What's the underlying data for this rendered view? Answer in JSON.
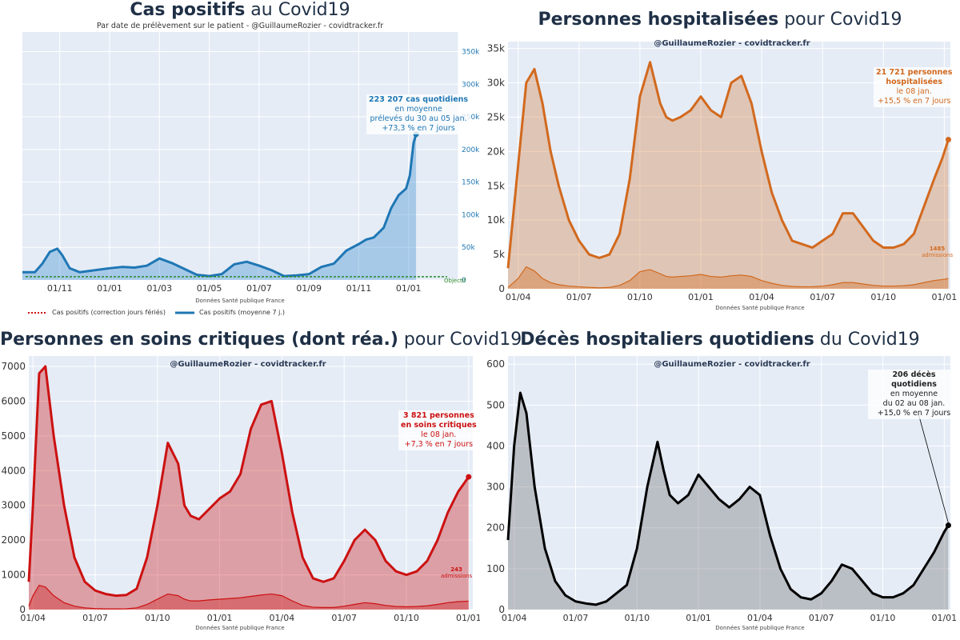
{
  "panels": {
    "cases": {
      "title_bold": "Cas positifs",
      "title_rest": " au Covid19",
      "subtitle": "Par date de prélèvement sur le patient - @GuillaumeRozier - covidtracker.fr",
      "source": "Données Santé publique France",
      "annotation": {
        "line1": "223 207 cas quotidiens",
        "line2": "en moyenne",
        "line3": "prélevés du 30 au 05 jan.",
        "line4": "+73,3 % en 7 jours"
      },
      "objective_label": "Objectif",
      "legend": {
        "dashed": "Cas positifs (correction jours fériés)",
        "solid": "Cas positifs (moyenne 7 j.)"
      }
    },
    "hosp": {
      "title_bold": "Personnes hospitalisées",
      "title_rest": " pour Covid19",
      "credit": "@GuillaumeRozier - covidtracker.fr",
      "source": "Données Santé publique France",
      "annotation": {
        "line1": "21 721 personnes",
        "line2": "hospitalisées",
        "line3": "le 08 jan.",
        "line4": "+15,5 % en 7 jours"
      },
      "admissions": {
        "value": "1485",
        "label": "admissions"
      }
    },
    "icu": {
      "title_bold": "Personnes en soins critiques (dont réa.)",
      "title_rest": " pour Covid19",
      "credit": "@GuillaumeRozier - covidtracker.fr",
      "source": "Données Santé publique France",
      "annotation": {
        "line1": "3 821 personnes",
        "line2": "en soins critiques",
        "line3": "le 08 jan.",
        "line4": "+7,3 % en 7 jours"
      },
      "admissions": {
        "value": "243",
        "label": "admissions"
      }
    },
    "deaths": {
      "title_bold": "Décès hospitaliers quotidiens",
      "title_rest": " du Covid19",
      "credit": "@GuillaumeRozier - covidtracker.fr",
      "source": "Données Santé publique France",
      "annotation": {
        "line1": "206 décès quotidiens",
        "line2": "en moyenne",
        "line3": "du 02 au 08 jan.",
        "line4": "+15,0 % en 7 jours"
      }
    }
  },
  "chart_data": [
    {
      "id": "cases",
      "type": "area",
      "title": "Cas positifs au Covid19",
      "ylim": [
        0,
        380000
      ],
      "yticks": [
        0,
        50000,
        100000,
        150000,
        200000,
        250000,
        300000,
        350000
      ],
      "ytick_labels": [
        "0",
        "50k",
        "100k",
        "150k",
        "200k",
        "250k",
        "300k",
        "350k"
      ],
      "xticks": [
        1.0,
        3.0,
        5.0,
        7.0,
        9.0,
        11.0,
        13.0,
        15.0,
        17.0
      ],
      "xtick_labels": [
        "01/11",
        "01/01",
        "01/03",
        "01/05",
        "01/07",
        "01/09",
        "01/11",
        "01/01",
        ""
      ],
      "xlim": [
        -0.5,
        17.0
      ],
      "color": "#1f77b4",
      "objective": 5000,
      "x": [
        -0.5,
        0.0,
        0.3,
        0.6,
        0.9,
        1.1,
        1.4,
        1.8,
        2.2,
        2.6,
        3.0,
        3.5,
        4.0,
        4.5,
        5.0,
        5.5,
        6.0,
        6.5,
        7.0,
        7.5,
        8.0,
        8.5,
        9.0,
        9.5,
        10.0,
        10.5,
        11.0,
        11.5,
        12.0,
        12.5,
        13.0,
        13.3,
        13.6,
        14.0,
        14.3,
        14.6,
        14.9,
        15.05,
        15.2,
        15.3
      ],
      "values": [
        12000,
        12000,
        25000,
        43000,
        48000,
        38000,
        18000,
        12000,
        14000,
        16000,
        18000,
        20000,
        19000,
        22000,
        33000,
        26000,
        17000,
        8000,
        6000,
        9000,
        24000,
        28000,
        22000,
        15000,
        6000,
        7000,
        9000,
        20000,
        25000,
        45000,
        55000,
        62000,
        65000,
        80000,
        110000,
        130000,
        140000,
        160000,
        210000,
        223207
      ]
    },
    {
      "id": "hosp",
      "type": "area",
      "title": "Personnes hospitalisées pour Covid19",
      "ylim": [
        0,
        36000
      ],
      "yticks": [
        0,
        5000,
        10000,
        15000,
        20000,
        25000,
        30000,
        35000
      ],
      "ytick_labels": [
        "0",
        "5k",
        "10k",
        "15k",
        "20k",
        "25k",
        "30k",
        "35k"
      ],
      "xticks": [
        0.0,
        3.0,
        6.0,
        9.0,
        12.0,
        15.0,
        18.0,
        21.0
      ],
      "xtick_labels": [
        "01/04",
        "01/07",
        "01/10",
        "01/01",
        "01/04",
        "01/07",
        "01/10",
        "01/01"
      ],
      "xlim": [
        -0.5,
        21.3
      ],
      "color": "#d2691e",
      "x": [
        -0.5,
        0.0,
        0.4,
        0.8,
        1.2,
        1.6,
        2.0,
        2.5,
        3.0,
        3.5,
        4.0,
        4.5,
        5.0,
        5.5,
        6.0,
        6.5,
        7.0,
        7.3,
        7.6,
        8.0,
        8.5,
        9.0,
        9.5,
        10.0,
        10.5,
        11.0,
        11.5,
        12.0,
        12.5,
        13.0,
        13.5,
        14.0,
        14.5,
        15.0,
        15.5,
        16.0,
        16.5,
        17.0,
        17.5,
        18.0,
        18.5,
        19.0,
        19.5,
        20.0,
        20.5,
        20.9,
        21.2
      ],
      "values": [
        3000,
        18000,
        30000,
        32000,
        27000,
        20000,
        15000,
        10000,
        7000,
        5000,
        4500,
        5000,
        8000,
        16000,
        28000,
        33000,
        27000,
        25000,
        24500,
        25000,
        26000,
        28000,
        26000,
        25000,
        30000,
        31000,
        27000,
        20000,
        14000,
        10000,
        7000,
        6500,
        6000,
        7000,
        8000,
        11000,
        11000,
        9000,
        7000,
        6000,
        6000,
        6500,
        8000,
        12000,
        16000,
        19000,
        21721
      ],
      "admissions": [
        200,
        1500,
        3200,
        2600,
        1500,
        900,
        600,
        400,
        300,
        200,
        150,
        200,
        500,
        1200,
        2500,
        2800,
        2200,
        1800,
        1700,
        1800,
        1900,
        2100,
        1800,
        1700,
        1900,
        2000,
        1800,
        1200,
        800,
        500,
        350,
        300,
        300,
        400,
        600,
        900,
        900,
        700,
        500,
        400,
        400,
        450,
        600,
        900,
        1200,
        1350,
        1485
      ]
    },
    {
      "id": "icu",
      "type": "area",
      "title": "Personnes en soins critiques (dont réa.) pour Covid19",
      "ylim": [
        0,
        7300
      ],
      "yticks": [
        0,
        1000,
        2000,
        3000,
        4000,
        5000,
        6000,
        7000
      ],
      "ytick_labels": [
        "0",
        "1000",
        "2000",
        "3000",
        "4000",
        "5000",
        "6000",
        "7000"
      ],
      "xticks": [
        0.0,
        3.0,
        6.0,
        9.0,
        12.0,
        15.0,
        18.0,
        21.0
      ],
      "xtick_labels": [
        "01/04",
        "01/07",
        "01/10",
        "01/01",
        "01/04",
        "01/07",
        "01/10",
        "01/01"
      ],
      "xlim": [
        -0.2,
        21.2
      ],
      "color": "#cc1111",
      "x": [
        -0.2,
        0.0,
        0.3,
        0.6,
        1.0,
        1.5,
        2.0,
        2.5,
        3.0,
        3.5,
        4.0,
        4.5,
        5.0,
        5.5,
        6.0,
        6.5,
        7.0,
        7.3,
        7.6,
        8.0,
        8.5,
        9.0,
        9.5,
        10.0,
        10.5,
        11.0,
        11.5,
        12.0,
        12.5,
        13.0,
        13.5,
        14.0,
        14.5,
        15.0,
        15.5,
        16.0,
        16.5,
        17.0,
        17.5,
        18.0,
        18.5,
        19.0,
        19.5,
        20.0,
        20.5,
        21.0
      ],
      "values": [
        800,
        3000,
        6800,
        7000,
        5000,
        3000,
        1500,
        800,
        550,
        450,
        400,
        420,
        600,
        1500,
        3000,
        4800,
        4200,
        3000,
        2700,
        2600,
        2900,
        3200,
        3400,
        3900,
        5200,
        5900,
        6000,
        4500,
        2800,
        1500,
        900,
        800,
        900,
        1400,
        2000,
        2300,
        2000,
        1400,
        1100,
        1000,
        1100,
        1400,
        2000,
        2800,
        3400,
        3821
      ],
      "admissions": [
        100,
        400,
        700,
        650,
        400,
        200,
        100,
        50,
        30,
        20,
        20,
        25,
        50,
        150,
        300,
        450,
        400,
        300,
        250,
        250,
        280,
        300,
        320,
        340,
        380,
        420,
        450,
        400,
        250,
        120,
        70,
        60,
        60,
        100,
        150,
        200,
        170,
        120,
        90,
        80,
        90,
        110,
        150,
        200,
        230,
        243
      ]
    },
    {
      "id": "deaths",
      "type": "area",
      "title": "Décès hospitaliers quotidiens du Covid19",
      "ylim": [
        0,
        620
      ],
      "yticks": [
        0,
        100,
        200,
        300,
        400,
        500,
        600
      ],
      "ytick_labels": [
        "0",
        "100",
        "200",
        "300",
        "400",
        "500",
        "600"
      ],
      "xticks": [
        0.0,
        3.0,
        6.0,
        9.0,
        12.0,
        15.0,
        18.0,
        21.0
      ],
      "xtick_labels": [
        "01/04",
        "01/07",
        "01/10",
        "01/01",
        "01/04",
        "01/07",
        "01/10",
        "01/01"
      ],
      "xlim": [
        -0.3,
        21.3
      ],
      "color": "#000000",
      "x": [
        -0.3,
        0.0,
        0.3,
        0.6,
        1.0,
        1.5,
        2.0,
        2.5,
        3.0,
        3.5,
        4.0,
        4.5,
        5.0,
        5.5,
        6.0,
        6.5,
        7.0,
        7.3,
        7.6,
        8.0,
        8.5,
        9.0,
        9.5,
        10.0,
        10.5,
        11.0,
        11.5,
        12.0,
        12.5,
        13.0,
        13.5,
        14.0,
        14.5,
        15.0,
        15.5,
        16.0,
        16.5,
        17.0,
        17.5,
        18.0,
        18.5,
        19.0,
        19.5,
        20.0,
        20.5,
        21.0,
        21.2
      ],
      "values": [
        170,
        400,
        530,
        480,
        300,
        150,
        70,
        35,
        20,
        15,
        12,
        20,
        40,
        60,
        150,
        300,
        410,
        340,
        280,
        260,
        280,
        330,
        300,
        270,
        250,
        270,
        300,
        280,
        180,
        100,
        50,
        30,
        25,
        40,
        70,
        110,
        100,
        70,
        40,
        30,
        30,
        40,
        60,
        100,
        140,
        190,
        206
      ]
    }
  ]
}
